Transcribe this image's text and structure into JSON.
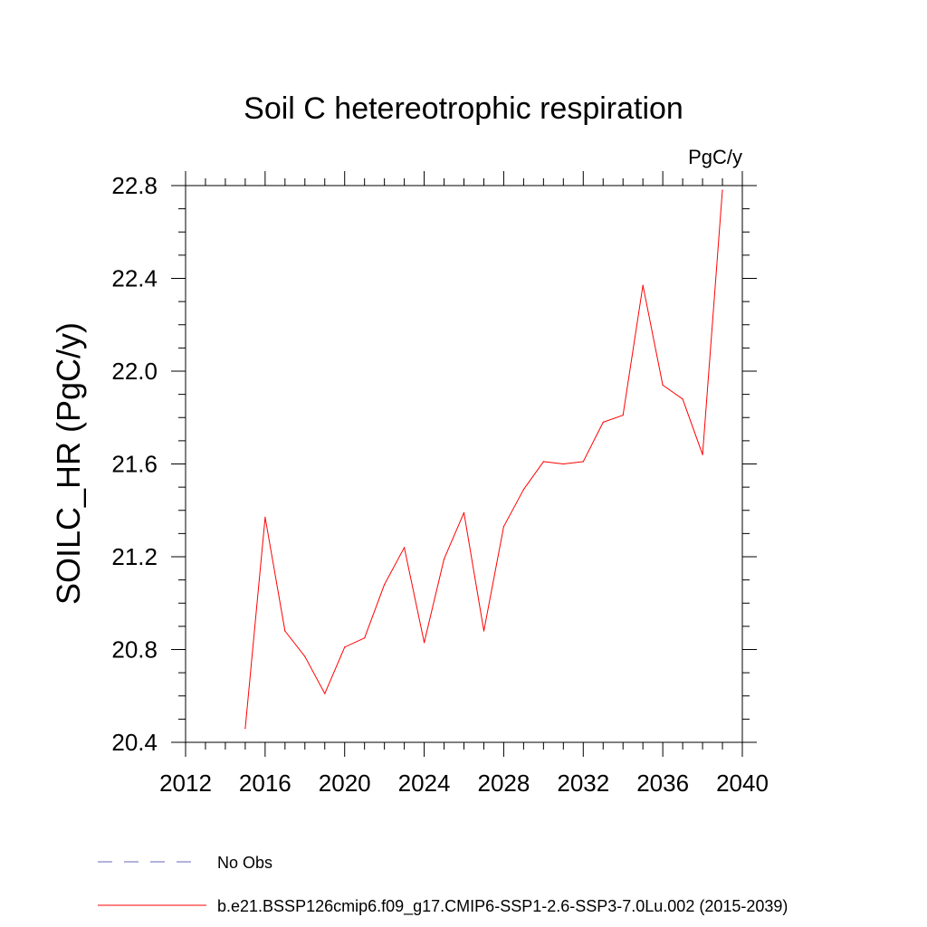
{
  "chart_data": {
    "type": "line",
    "title": "Soil C hetereotrophic respiration",
    "units": "PgC/y",
    "ylabel": "SOILC_HR  (PgC/y)",
    "xlabel": "",
    "xlim": [
      2012,
      2040
    ],
    "ylim": [
      20.4,
      22.8
    ],
    "x_ticks": [
      "2012",
      "2016",
      "2020",
      "2024",
      "2028",
      "2032",
      "2036",
      "2040"
    ],
    "y_ticks": [
      "20.4",
      "20.8",
      "21.2",
      "21.6",
      "22.0",
      "22.4",
      "22.8"
    ],
    "series": [
      {
        "name": "b.e21.BSSP126cmip6.f09_g17.CMIP6-SSP1-2.6-SSP3-7.0Lu.002 (2015-2039)",
        "color": "#ff0000",
        "x": [
          2015,
          2016,
          2017,
          2018,
          2019,
          2020,
          2021,
          2022,
          2023,
          2024,
          2025,
          2026,
          2027,
          2028,
          2029,
          2030,
          2031,
          2032,
          2033,
          2034,
          2035,
          2036,
          2037,
          2038,
          2039
        ],
        "values": [
          20.46,
          21.37,
          20.88,
          20.77,
          20.61,
          20.81,
          20.85,
          21.08,
          21.24,
          20.83,
          21.19,
          21.39,
          20.88,
          21.33,
          21.49,
          21.61,
          21.6,
          21.61,
          21.78,
          21.81,
          22.37,
          21.94,
          21.88,
          21.64,
          22.78
        ]
      }
    ]
  },
  "legend": {
    "items": [
      {
        "label": "No Obs",
        "color": "#6666bb",
        "style": "dashed"
      },
      {
        "label": "b.e21.BSSP126cmip6.f09_g17.CMIP6-SSP1-2.6-SSP3-7.0Lu.002 (2015-2039)",
        "color": "#ff0000",
        "style": "solid"
      }
    ]
  }
}
